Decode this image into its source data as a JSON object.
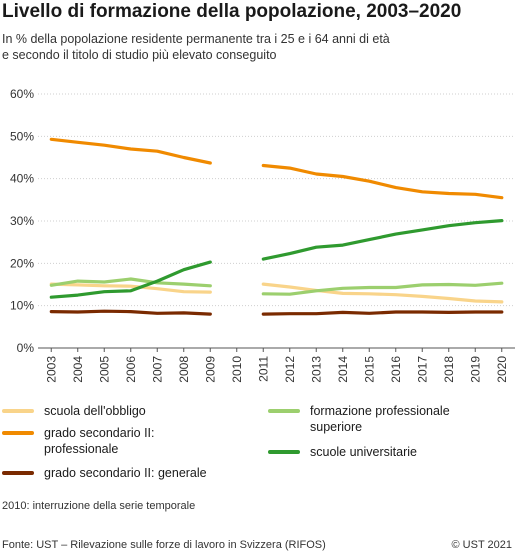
{
  "chart_data": {
    "type": "line",
    "title": "Livello di formazione della popolazione, 2003–2020",
    "subtitle_line1": "In % della popolazione residente permanente tra i 25 e i 64 anni di età",
    "subtitle_line2": "e secondo il titolo di studio più elevato conseguito",
    "x": [
      2003,
      2004,
      2005,
      2006,
      2007,
      2008,
      2009,
      2010,
      2011,
      2012,
      2013,
      2014,
      2015,
      2016,
      2017,
      2018,
      2019,
      2020
    ],
    "x_labels": [
      "2003",
      "2004",
      "2005",
      "2006",
      "2007",
      "2008",
      "2009",
      "2010",
      "2011",
      "2012",
      "2013",
      "2014",
      "2015",
      "2016",
      "2017",
      "2018",
      "2019",
      "2020"
    ],
    "ylim": [
      0,
      60
    ],
    "y_ticks": [
      0,
      10,
      20,
      30,
      40,
      50,
      60
    ],
    "y_tick_labels": [
      "0%",
      "10%",
      "20%",
      "30%",
      "40%",
      "50%",
      "60%"
    ],
    "grid": true,
    "series_break_year": 2010,
    "series": [
      {
        "name": "scuola dell'obbligo",
        "color": "#f9d48a",
        "values": [
          15.1,
          14.9,
          14.7,
          14.6,
          14.0,
          13.3,
          13.2,
          null,
          15.1,
          14.4,
          13.6,
          12.9,
          12.8,
          12.6,
          12.2,
          11.7,
          11.1,
          10.9
        ]
      },
      {
        "name": "grado secondario II: professionale",
        "name_line1": "grado secondario II:",
        "name_line2": "professionale",
        "color": "#f08a00",
        "values": [
          49.3,
          48.6,
          47.9,
          47.0,
          46.5,
          45.0,
          43.7,
          null,
          43.1,
          42.5,
          41.1,
          40.5,
          39.4,
          37.9,
          36.9,
          36.5,
          36.3,
          35.5
        ]
      },
      {
        "name": "grado secondario II: generale",
        "color": "#7a2a00",
        "values": [
          8.6,
          8.5,
          8.7,
          8.6,
          8.2,
          8.3,
          8.0,
          null,
          8.0,
          8.1,
          8.1,
          8.4,
          8.2,
          8.5,
          8.5,
          8.4,
          8.5,
          8.5
        ]
      },
      {
        "name": "formazione professionale superiore",
        "name_line1": "formazione professionale",
        "name_line2": "superiore",
        "color": "#9ccf6e",
        "values": [
          14.8,
          15.8,
          15.6,
          16.3,
          15.4,
          15.1,
          14.7,
          null,
          12.8,
          12.7,
          13.5,
          14.1,
          14.3,
          14.3,
          14.9,
          15.0,
          14.8,
          15.3
        ]
      },
      {
        "name": "scuole universitarie",
        "color": "#2f9a2f",
        "values": [
          12.0,
          12.5,
          13.3,
          13.5,
          15.8,
          18.5,
          20.3,
          null,
          21.0,
          22.3,
          23.8,
          24.3,
          25.6,
          26.9,
          27.9,
          28.9,
          29.6,
          30.1
        ]
      }
    ]
  },
  "note": "2010: interruzione della serie temporale",
  "source": "Fonte: UST – Rilevazione sulle forze di lavoro in Svizzera (RIFOS)",
  "copyright": "© UST 2021"
}
